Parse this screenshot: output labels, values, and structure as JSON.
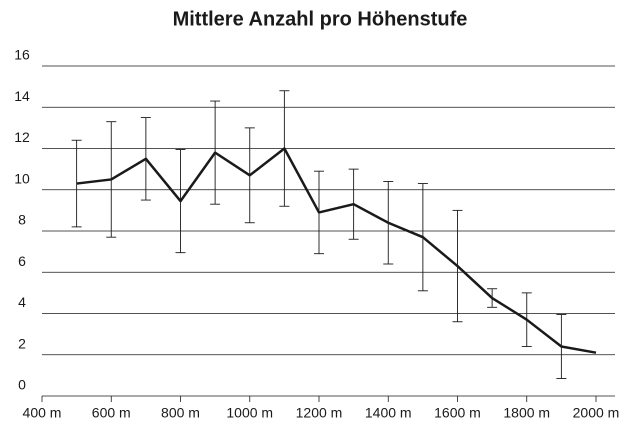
{
  "chart_data": {
    "type": "line",
    "title": "Mittlere Anzahl pro Höhenstufe",
    "x": [
      500,
      600,
      700,
      800,
      900,
      1000,
      1100,
      1200,
      1300,
      1400,
      1500,
      1600,
      1700,
      1800,
      1900,
      2000
    ],
    "series": [
      {
        "color": "#1a1a1a",
        "values": [
          10.3,
          10.5,
          11.5,
          9.45,
          11.8,
          10.7,
          12.0,
          8.9,
          9.3,
          8.4,
          7.7,
          6.3,
          4.75,
          3.7,
          2.4,
          2.1
        ],
        "errors": [
          2.1,
          2.8,
          2.0,
          2.5,
          2.5,
          2.3,
          2.8,
          2.0,
          1.7,
          2.0,
          2.6,
          2.7,
          0.45,
          1.3,
          1.55,
          null
        ]
      }
    ],
    "xlim": [
      400,
      2000
    ],
    "xticks": [
      {
        "value": 400,
        "label": "400 m"
      },
      {
        "value": 600,
        "label": "600 m"
      },
      {
        "value": 800,
        "label": "800 m"
      },
      {
        "value": 1000,
        "label": "1000 m"
      },
      {
        "value": 1200,
        "label": "1200 m"
      },
      {
        "value": 1400,
        "label": "1400 m"
      },
      {
        "value": 1600,
        "label": "1600 m"
      },
      {
        "value": 1800,
        "label": "1800 m"
      },
      {
        "value": 2000,
        "label": "2000 m"
      }
    ],
    "ylim": [
      0,
      16
    ],
    "yticks": [
      0,
      2,
      4,
      6,
      8,
      10,
      12,
      14,
      16
    ],
    "grid": true
  }
}
